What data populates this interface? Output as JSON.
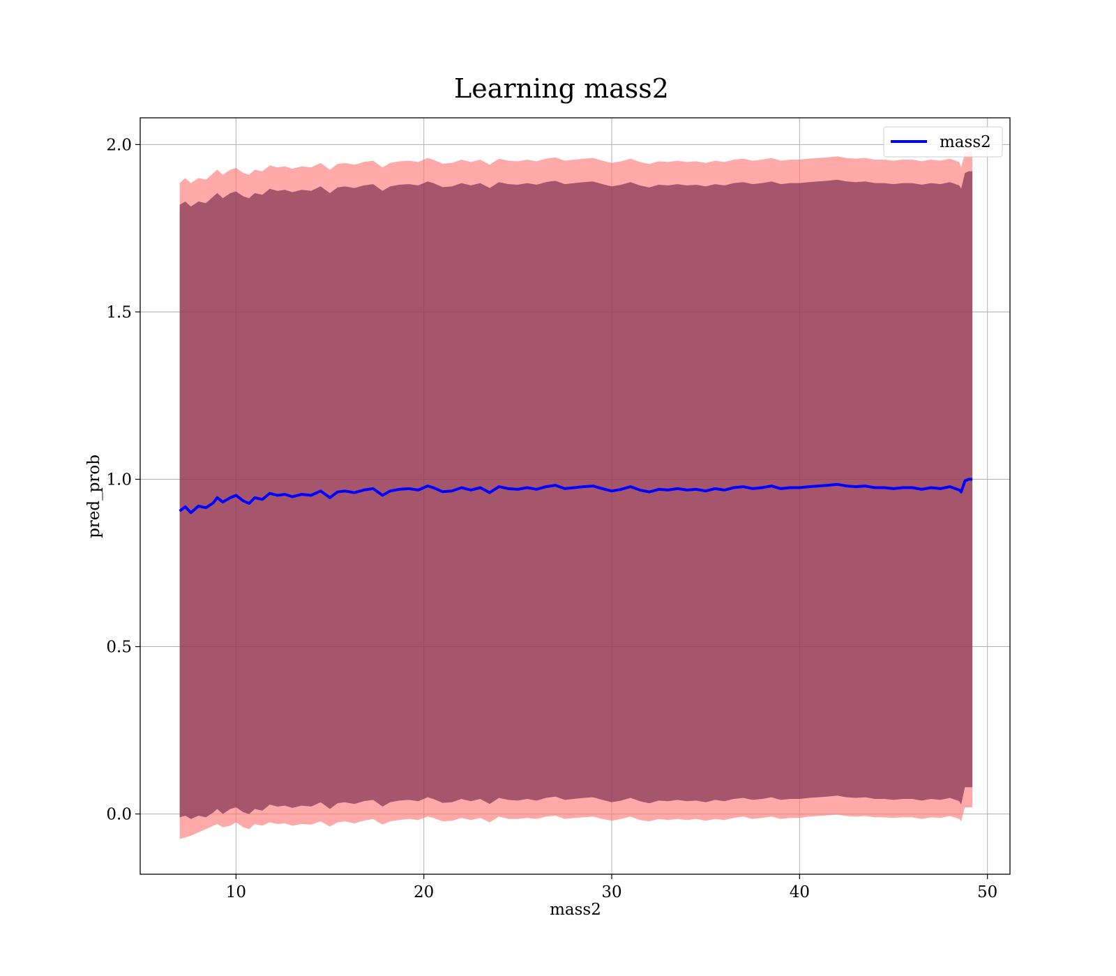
{
  "chart_data": {
    "type": "line",
    "title": "Learning mass2",
    "xlabel": "mass2",
    "ylabel": "pred_prob",
    "xlim": [
      4.9,
      51.2
    ],
    "ylim": [
      -0.18,
      2.08
    ],
    "xticks": [
      10,
      20,
      30,
      40,
      50
    ],
    "yticks": [
      0.0,
      0.5,
      1.0,
      1.5,
      2.0
    ],
    "xtick_labels": [
      "10",
      "20",
      "30",
      "40",
      "50"
    ],
    "ytick_labels": [
      "0.0",
      "0.5",
      "1.0",
      "1.5",
      "2.0"
    ],
    "grid": true,
    "legend": {
      "placement": "top-right",
      "entries": [
        "mass2"
      ]
    },
    "colors": {
      "line": "#0000ff",
      "outer_band": "#ff6f6f",
      "inner_band": "#6b1f45",
      "grid": "#b0b0b0"
    },
    "series": [
      {
        "name": "mass2",
        "x": [
          7.0,
          7.3,
          7.6,
          8.0,
          8.4,
          8.8,
          9.0,
          9.3,
          9.7,
          10.0,
          10.4,
          10.7,
          11.0,
          11.4,
          11.8,
          12.2,
          12.6,
          13.0,
          13.5,
          14.0,
          14.5,
          15.0,
          15.4,
          15.8,
          16.3,
          16.8,
          17.3,
          17.8,
          18.2,
          18.7,
          19.2,
          19.7,
          20.2,
          20.5,
          21.0,
          21.5,
          22.0,
          22.5,
          23.0,
          23.5,
          24.0,
          24.5,
          25.0,
          25.5,
          26.0,
          26.5,
          27.0,
          27.5,
          28.0,
          28.5,
          29.0,
          29.5,
          30.0,
          30.5,
          31.0,
          31.5,
          32.0,
          32.5,
          33.0,
          33.5,
          34.0,
          34.5,
          35.0,
          35.5,
          36.0,
          36.5,
          37.0,
          37.5,
          38.0,
          38.5,
          39.0,
          39.5,
          40.0,
          40.5,
          41.0,
          41.5,
          42.0,
          42.5,
          43.0,
          43.5,
          44.0,
          44.5,
          45.0,
          45.5,
          46.0,
          46.5,
          47.0,
          47.5,
          48.0,
          48.5,
          48.6,
          48.8,
          49.0,
          49.2
        ],
        "y": [
          0.905,
          0.918,
          0.9,
          0.92,
          0.915,
          0.93,
          0.945,
          0.932,
          0.945,
          0.952,
          0.935,
          0.928,
          0.945,
          0.94,
          0.958,
          0.952,
          0.955,
          0.948,
          0.955,
          0.952,
          0.965,
          0.945,
          0.962,
          0.965,
          0.96,
          0.968,
          0.972,
          0.952,
          0.965,
          0.97,
          0.972,
          0.968,
          0.98,
          0.975,
          0.963,
          0.965,
          0.975,
          0.968,
          0.975,
          0.96,
          0.978,
          0.972,
          0.97,
          0.975,
          0.97,
          0.978,
          0.982,
          0.972,
          0.975,
          0.978,
          0.98,
          0.972,
          0.965,
          0.97,
          0.978,
          0.968,
          0.962,
          0.97,
          0.968,
          0.972,
          0.968,
          0.97,
          0.965,
          0.972,
          0.968,
          0.975,
          0.978,
          0.972,
          0.975,
          0.98,
          0.972,
          0.975,
          0.975,
          0.978,
          0.98,
          0.982,
          0.985,
          0.98,
          0.978,
          0.98,
          0.975,
          0.975,
          0.972,
          0.975,
          0.975,
          0.97,
          0.975,
          0.972,
          0.978,
          0.968,
          0.962,
          0.995,
          1.0,
          1.0
        ],
        "outer_band": {
          "lower": [
            -0.075,
            -0.07,
            -0.065,
            -0.055,
            -0.045,
            -0.035,
            -0.03,
            -0.04,
            -0.035,
            -0.025,
            -0.04,
            -0.045,
            -0.03,
            -0.035,
            -0.025,
            -0.03,
            -0.028,
            -0.035,
            -0.03,
            -0.032,
            -0.022,
            -0.038,
            -0.025,
            -0.022,
            -0.028,
            -0.02,
            -0.015,
            -0.032,
            -0.022,
            -0.018,
            -0.015,
            -0.018,
            -0.008,
            -0.012,
            -0.022,
            -0.02,
            -0.012,
            -0.018,
            -0.012,
            -0.025,
            -0.008,
            -0.015,
            -0.015,
            -0.012,
            -0.015,
            -0.008,
            -0.005,
            -0.015,
            -0.012,
            -0.01,
            -0.008,
            -0.015,
            -0.02,
            -0.015,
            -0.008,
            -0.018,
            -0.022,
            -0.015,
            -0.018,
            -0.015,
            -0.018,
            -0.015,
            -0.02,
            -0.015,
            -0.018,
            -0.012,
            -0.008,
            -0.015,
            -0.012,
            -0.008,
            -0.015,
            -0.012,
            -0.012,
            -0.008,
            -0.006,
            -0.004,
            -0.002,
            -0.006,
            -0.008,
            -0.006,
            -0.01,
            -0.01,
            -0.012,
            -0.01,
            -0.01,
            -0.015,
            -0.01,
            -0.012,
            -0.006,
            -0.015,
            -0.022,
            0.02,
            0.02,
            0.02
          ],
          "upper": [
            1.885,
            1.9,
            1.885,
            1.9,
            1.895,
            1.915,
            1.925,
            1.91,
            1.925,
            1.93,
            1.915,
            1.91,
            1.925,
            1.92,
            1.938,
            1.932,
            1.935,
            1.928,
            1.935,
            1.932,
            1.945,
            1.925,
            1.942,
            1.945,
            1.94,
            1.948,
            1.952,
            1.932,
            1.945,
            1.95,
            1.952,
            1.948,
            1.96,
            1.955,
            1.943,
            1.945,
            1.955,
            1.948,
            1.955,
            1.94,
            1.958,
            1.952,
            1.95,
            1.955,
            1.95,
            1.958,
            1.962,
            1.952,
            1.955,
            1.958,
            1.96,
            1.952,
            1.945,
            1.95,
            1.958,
            1.948,
            1.942,
            1.95,
            1.948,
            1.952,
            1.948,
            1.95,
            1.945,
            1.952,
            1.948,
            1.955,
            1.958,
            1.952,
            1.955,
            1.96,
            1.952,
            1.955,
            1.955,
            1.958,
            1.96,
            1.962,
            1.965,
            1.96,
            1.958,
            1.96,
            1.955,
            1.955,
            1.952,
            1.955,
            1.955,
            1.95,
            1.955,
            1.952,
            1.958,
            1.948,
            1.932,
            1.975,
            1.98,
            1.98
          ]
        },
        "inner_band": {
          "lower": [
            -0.01,
            -0.005,
            -0.015,
            -0.005,
            -0.01,
            0.005,
            0.015,
            0.0,
            0.015,
            0.02,
            0.005,
            0.0,
            0.015,
            0.01,
            0.028,
            0.022,
            0.025,
            0.018,
            0.025,
            0.022,
            0.035,
            0.015,
            0.032,
            0.035,
            0.03,
            0.038,
            0.042,
            0.022,
            0.035,
            0.04,
            0.042,
            0.038,
            0.05,
            0.045,
            0.033,
            0.035,
            0.045,
            0.038,
            0.045,
            0.03,
            0.048,
            0.042,
            0.04,
            0.045,
            0.04,
            0.048,
            0.052,
            0.042,
            0.045,
            0.048,
            0.05,
            0.042,
            0.035,
            0.04,
            0.048,
            0.038,
            0.032,
            0.04,
            0.038,
            0.042,
            0.038,
            0.04,
            0.035,
            0.042,
            0.038,
            0.045,
            0.048,
            0.042,
            0.045,
            0.05,
            0.042,
            0.045,
            0.045,
            0.048,
            0.05,
            0.052,
            0.055,
            0.05,
            0.048,
            0.05,
            0.045,
            0.045,
            0.042,
            0.045,
            0.045,
            0.04,
            0.045,
            0.042,
            0.048,
            0.038,
            0.028,
            0.08,
            0.08,
            0.08
          ],
          "upper": [
            1.82,
            1.83,
            1.815,
            1.83,
            1.825,
            1.845,
            1.855,
            1.84,
            1.855,
            1.86,
            1.845,
            1.84,
            1.855,
            1.85,
            1.868,
            1.862,
            1.865,
            1.858,
            1.865,
            1.862,
            1.875,
            1.855,
            1.872,
            1.875,
            1.87,
            1.878,
            1.882,
            1.862,
            1.875,
            1.88,
            1.882,
            1.878,
            1.89,
            1.885,
            1.873,
            1.875,
            1.885,
            1.878,
            1.885,
            1.87,
            1.888,
            1.882,
            1.88,
            1.885,
            1.88,
            1.888,
            1.892,
            1.882,
            1.885,
            1.888,
            1.89,
            1.882,
            1.875,
            1.88,
            1.888,
            1.878,
            1.872,
            1.88,
            1.878,
            1.882,
            1.878,
            1.88,
            1.875,
            1.882,
            1.878,
            1.885,
            1.888,
            1.882,
            1.885,
            1.89,
            1.882,
            1.885,
            1.885,
            1.888,
            1.89,
            1.892,
            1.895,
            1.89,
            1.888,
            1.89,
            1.885,
            1.885,
            1.882,
            1.885,
            1.885,
            1.88,
            1.885,
            1.882,
            1.888,
            1.878,
            1.868,
            1.915,
            1.92,
            1.92
          ]
        }
      }
    ]
  }
}
